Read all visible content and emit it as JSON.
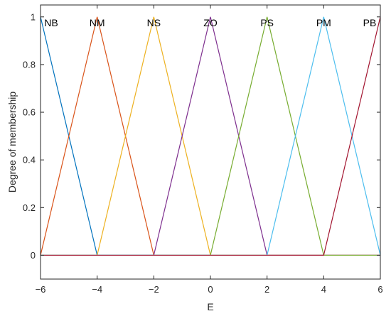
{
  "chart_data": {
    "type": "line",
    "title": "",
    "xlabel": "E",
    "ylabel": "Degree of membership",
    "xlim": [
      -6,
      6
    ],
    "ylim": [
      -0.1,
      1.05
    ],
    "grid": false,
    "legend": "none",
    "xticks": [
      -6,
      -4,
      -2,
      0,
      2,
      4,
      6
    ],
    "yticks": [
      0,
      0.2,
      0.4,
      0.6,
      0.8,
      1
    ],
    "xtick_labels": [
      "−6",
      "−4",
      "−2",
      "0",
      "2",
      "4",
      "6"
    ],
    "ytick_labels": [
      "0",
      "0.2",
      "0.4",
      "0.6",
      "0.8",
      "1"
    ],
    "series": [
      {
        "name": "NB",
        "color": "#0072BD",
        "x": [
          -6,
          -4,
          6
        ],
        "y": [
          1,
          0,
          0
        ]
      },
      {
        "name": "NM",
        "color": "#D95319",
        "x": [
          -6,
          -4,
          -2,
          6
        ],
        "y": [
          0,
          1,
          0,
          0
        ]
      },
      {
        "name": "NS",
        "color": "#EDB120",
        "x": [
          -6,
          -4,
          -2,
          0,
          6
        ],
        "y": [
          0,
          0,
          1,
          0,
          0
        ]
      },
      {
        "name": "ZO",
        "color": "#7E2F8E",
        "x": [
          -6,
          -2,
          0,
          2,
          6
        ],
        "y": [
          0,
          0,
          1,
          0,
          0
        ]
      },
      {
        "name": "PS",
        "color": "#77AC30",
        "x": [
          -6,
          0,
          2,
          4,
          6
        ],
        "y": [
          0,
          0,
          1,
          0,
          0
        ]
      },
      {
        "name": "PM",
        "color": "#4DBEEE",
        "x": [
          -6,
          2,
          4,
          6
        ],
        "y": [
          0,
          0,
          1,
          0
        ]
      },
      {
        "name": "PB",
        "color": "#A2142F",
        "x": [
          -6,
          4,
          6
        ],
        "y": [
          0,
          0,
          1
        ]
      }
    ]
  }
}
